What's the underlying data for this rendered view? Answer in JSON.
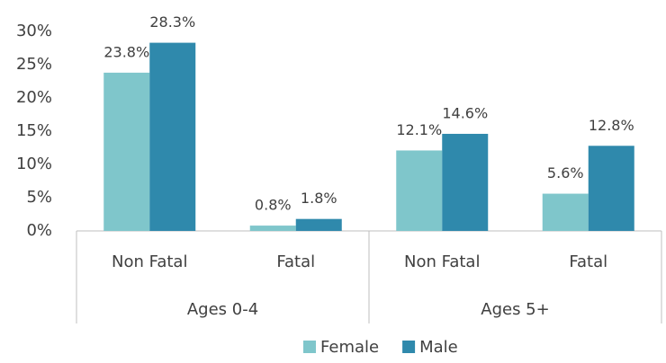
{
  "chart_data": {
    "type": "bar",
    "categories": [
      "Non Fatal",
      "Fatal",
      "Non Fatal",
      "Fatal"
    ],
    "groups": [
      "Ages 0-4",
      "Ages 5+"
    ],
    "series": [
      {
        "name": "Female",
        "color": "#7fc6cb",
        "values": [
          23.8,
          0.8,
          12.1,
          5.6
        ],
        "value_labels": [
          "23.8%",
          "0.8%",
          "12.1%",
          "5.6%"
        ]
      },
      {
        "name": "Male",
        "color": "#2f89ac",
        "values": [
          28.3,
          1.8,
          14.6,
          12.8
        ],
        "value_labels": [
          "28.3%",
          "1.8%",
          "14.6%",
          "12.8%"
        ]
      }
    ],
    "ylim": [
      0,
      30
    ],
    "yticks": [
      {
        "value": 0,
        "label": "0%"
      },
      {
        "value": 5,
        "label": "5%"
      },
      {
        "value": 10,
        "label": "10%"
      },
      {
        "value": 15,
        "label": "15%"
      },
      {
        "value": 20,
        "label": "20%"
      },
      {
        "value": 25,
        "label": "25%"
      },
      {
        "value": 30,
        "label": "30%"
      }
    ],
    "legend": "bottom"
  }
}
